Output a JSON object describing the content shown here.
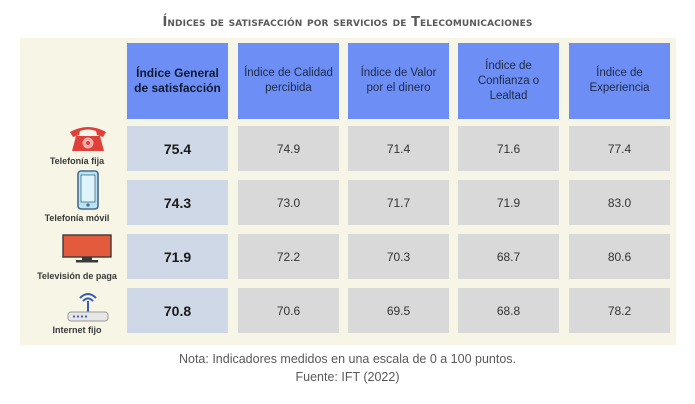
{
  "title": "Índices de satisfacción por servicios de Telecomunicaciones",
  "chart_data": {
    "type": "table",
    "columns": [
      "Índice General de satisfacción",
      "Índice de Calidad percibida",
      "Índice de Valor por el dinero",
      "Índice de Confianza o Lealtad",
      "Índice de Experiencia"
    ],
    "rows": [
      {
        "label": "Telefonía fija",
        "icon": "telephone-icon",
        "values": [
          "75.4",
          "74.9",
          "71.4",
          "71.6",
          "77.4"
        ]
      },
      {
        "label": "Telefonía móvil",
        "icon": "mobile-phone-icon",
        "values": [
          "74.3",
          "73.0",
          "71.7",
          "71.9",
          "83.0"
        ]
      },
      {
        "label": "Televisión de paga",
        "icon": "television-icon",
        "values": [
          "71.9",
          "72.2",
          "70.3",
          "68.7",
          "80.6"
        ]
      },
      {
        "label": "Internet fijo",
        "icon": "router-icon",
        "values": [
          "70.8",
          "70.6",
          "69.5",
          "68.8",
          "78.2"
        ]
      }
    ]
  },
  "note": "Nota: Indicadores medidos en una escala de 0 a 100 puntos.",
  "source": "Fuente: IFT (2022)",
  "colors": {
    "header": "#6d8ff5",
    "cell": "#d9d9d9",
    "main_cell": "#cfd8e6",
    "panel": "#f7f5e6",
    "phone_red": "#e0403a",
    "tv_red": "#e35a3c"
  }
}
